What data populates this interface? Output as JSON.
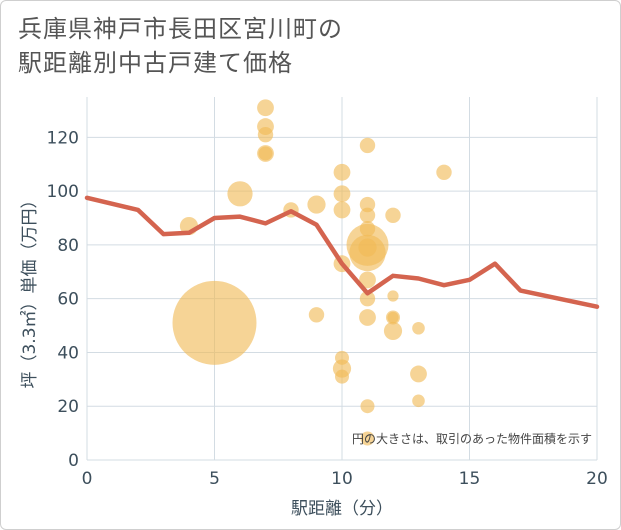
{
  "chart_data": {
    "type": "scatter",
    "title_lines": [
      "兵庫県神戸市長田区宮川町の",
      "駅距離別中古戸建て価格"
    ],
    "xlabel": "駅距離（分）",
    "ylabel": "坪（3.3㎡）単価（万円）",
    "note": "円の大きさは、取引のあった物件面積を示す",
    "xlim": [
      0,
      20
    ],
    "ylim": [
      0,
      135
    ],
    "x_ticks": [
      0,
      5,
      10,
      15,
      20
    ],
    "y_ticks": [
      0,
      20,
      40,
      60,
      80,
      100,
      120
    ],
    "colors": {
      "bubble": "#f0b955",
      "line": "#d4644f",
      "grid": "#d3dce3",
      "plot_bg": "#ffffff"
    },
    "bubbles": [
      {
        "x": 4,
        "y": 87,
        "s": 1.3
      },
      {
        "x": 5,
        "y": 51,
        "s": 6.0
      },
      {
        "x": 6,
        "y": 99,
        "s": 1.8
      },
      {
        "x": 7,
        "y": 131,
        "s": 1.2
      },
      {
        "x": 7,
        "y": 124,
        "s": 1.2
      },
      {
        "x": 7,
        "y": 121,
        "s": 1.1
      },
      {
        "x": 7,
        "y": 114,
        "s": 1.2
      },
      {
        "x": 7,
        "y": 114,
        "s": 1.0
      },
      {
        "x": 8,
        "y": 93,
        "s": 1.1
      },
      {
        "x": 9,
        "y": 95,
        "s": 1.3
      },
      {
        "x": 9,
        "y": 54,
        "s": 1.1
      },
      {
        "x": 10,
        "y": 107,
        "s": 1.2
      },
      {
        "x": 10,
        "y": 99,
        "s": 1.2
      },
      {
        "x": 10,
        "y": 93,
        "s": 1.2
      },
      {
        "x": 10,
        "y": 73,
        "s": 1.2
      },
      {
        "x": 10,
        "y": 38,
        "s": 1.0
      },
      {
        "x": 10,
        "y": 34,
        "s": 1.3
      },
      {
        "x": 10,
        "y": 31,
        "s": 1.0
      },
      {
        "x": 11,
        "y": 117,
        "s": 1.1
      },
      {
        "x": 11,
        "y": 95,
        "s": 1.1
      },
      {
        "x": 11,
        "y": 91,
        "s": 1.1
      },
      {
        "x": 11,
        "y": 86,
        "s": 1.1
      },
      {
        "x": 11,
        "y": 80,
        "s": 3.0
      },
      {
        "x": 11,
        "y": 77,
        "s": 2.6
      },
      {
        "x": 11,
        "y": 79,
        "s": 1.3
      },
      {
        "x": 11,
        "y": 67,
        "s": 1.2
      },
      {
        "x": 11,
        "y": 60,
        "s": 1.1
      },
      {
        "x": 11,
        "y": 53,
        "s": 1.2
      },
      {
        "x": 11,
        "y": 20,
        "s": 1.0
      },
      {
        "x": 11,
        "y": 8,
        "s": 1.0
      },
      {
        "x": 12,
        "y": 91,
        "s": 1.1
      },
      {
        "x": 12,
        "y": 61,
        "s": 0.8
      },
      {
        "x": 12,
        "y": 53,
        "s": 1.0
      },
      {
        "x": 12,
        "y": 53,
        "s": 0.8
      },
      {
        "x": 12,
        "y": 48,
        "s": 1.3
      },
      {
        "x": 13,
        "y": 49,
        "s": 0.9
      },
      {
        "x": 13,
        "y": 32,
        "s": 1.2
      },
      {
        "x": 13,
        "y": 22,
        "s": 0.9
      },
      {
        "x": 14,
        "y": 107,
        "s": 1.1
      }
    ],
    "line": {
      "x": [
        0,
        2,
        3,
        4,
        5,
        6,
        7,
        8,
        9,
        10,
        11,
        12,
        13,
        14,
        15,
        16,
        17,
        20
      ],
      "y": [
        97.5,
        93,
        84,
        84.5,
        90,
        90.5,
        88,
        92.5,
        87.5,
        73,
        62,
        68.5,
        67.5,
        65,
        67,
        73,
        63,
        57
      ]
    }
  }
}
